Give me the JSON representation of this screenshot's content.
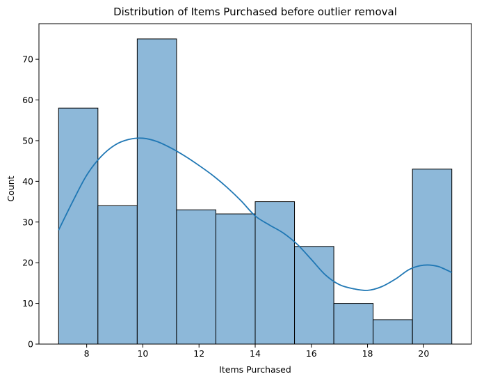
{
  "chart_data": {
    "type": "bar",
    "title": "Distribution of Items Purchased before outlier removal",
    "xlabel": "Items Purchased",
    "ylabel": "Count",
    "xlim": [
      6.3,
      21.7
    ],
    "ylim": [
      0,
      78.75
    ],
    "xticks": [
      8,
      10,
      12,
      14,
      16,
      18,
      20
    ],
    "yticks": [
      0,
      10,
      20,
      30,
      40,
      50,
      60,
      70
    ],
    "bins": [
      {
        "start": 7.0,
        "end": 8.4,
        "count": 58
      },
      {
        "start": 8.4,
        "end": 9.8,
        "count": 34
      },
      {
        "start": 9.8,
        "end": 11.2,
        "count": 75
      },
      {
        "start": 11.2,
        "end": 12.6,
        "count": 33
      },
      {
        "start": 12.6,
        "end": 14.0,
        "count": 32
      },
      {
        "start": 14.0,
        "end": 15.4,
        "count": 35
      },
      {
        "start": 15.4,
        "end": 16.8,
        "count": 24
      },
      {
        "start": 16.8,
        "end": 18.2,
        "count": 10
      },
      {
        "start": 18.2,
        "end": 19.6,
        "count": 6
      },
      {
        "start": 19.6,
        "end": 21.0,
        "count": 43
      }
    ],
    "kde": {
      "x": [
        7.0,
        7.5,
        8.0,
        8.5,
        9.0,
        9.5,
        10.0,
        10.5,
        11.0,
        11.5,
        12.0,
        12.5,
        13.0,
        13.5,
        14.0,
        14.5,
        15.0,
        15.5,
        16.0,
        16.5,
        17.0,
        17.5,
        18.0,
        18.5,
        19.0,
        19.5,
        20.0,
        20.5,
        21.0
      ],
      "y": [
        28,
        35,
        41.5,
        46,
        48.9,
        50.3,
        50.6,
        49.8,
        48.2,
        46.2,
        43.9,
        41.4,
        38.5,
        35.2,
        31.5,
        29.3,
        27.3,
        24.5,
        20.8,
        17,
        14.6,
        13.6,
        13.2,
        14.1,
        16,
        18.4,
        19.4,
        19.1,
        17.6
      ]
    },
    "bar_fill": "#8db8d9",
    "bar_edge": "#000000",
    "kde_color": "#1f77b4",
    "grid": false,
    "legend": "none"
  }
}
